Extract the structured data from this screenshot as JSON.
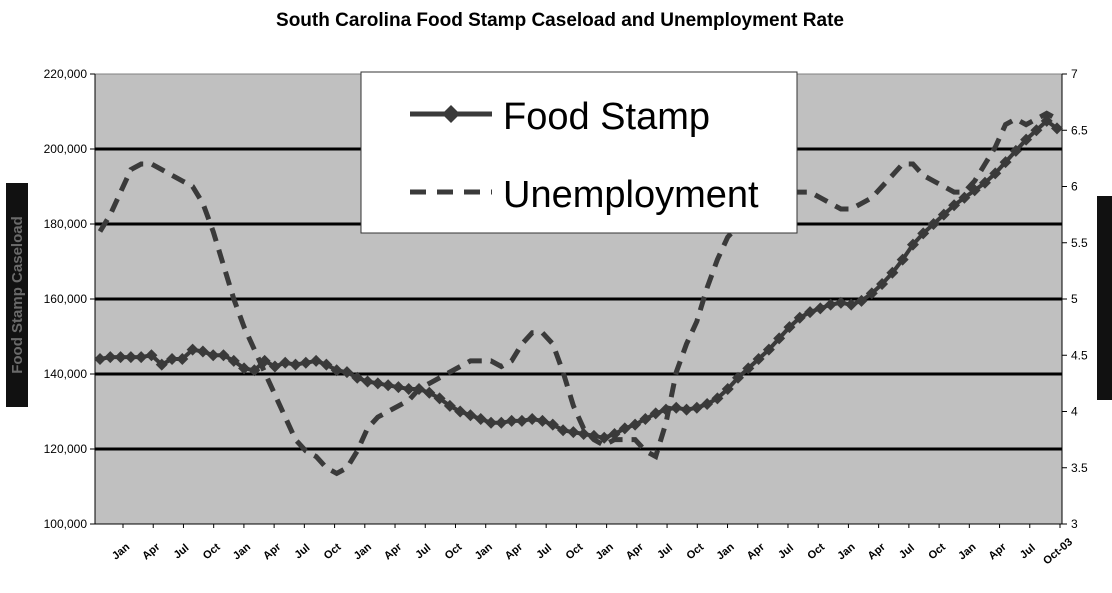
{
  "chart_data": {
    "type": "line",
    "title": "South Carolina Food Stamp Caseload and Unemployment Rate",
    "ylabel": "Food Stamp Caseload",
    "y2label": "",
    "ylim": [
      100000,
      220000
    ],
    "y2lim": [
      3,
      7
    ],
    "yticks": [
      "100,000",
      "120,000",
      "140,000",
      "160,000",
      "180,000",
      "200,000",
      "220,000"
    ],
    "y2ticks": [
      "3",
      "3.5",
      "4",
      "4.5",
      "5",
      "5.5",
      "6",
      "6.5",
      "7"
    ],
    "grid": "horizontal",
    "plot_background": "#c0c0c0",
    "line_color": "#3a3a3a",
    "legend_position": "top-center",
    "x_tick_labels": [
      "Jan",
      "Apr",
      "Jul",
      "Oct",
      "Jan",
      "Apr",
      "Jul",
      "Oct",
      "Jan",
      "Apr",
      "Jul",
      "Oct",
      "Jan",
      "Apr",
      "Jul",
      "Oct",
      "Jan",
      "Apr",
      "Jul",
      "Oct",
      "Jan",
      "Apr",
      "Jul",
      "Oct",
      "Jan",
      "Apr",
      "Jul",
      "Oct",
      "Jan",
      "Apr",
      "Jul",
      "Oct-03"
    ],
    "series": [
      {
        "name": "Food Stamp",
        "axis": "left",
        "style": "solid-diamond",
        "values": [
          144000,
          144500,
          144500,
          144500,
          144500,
          145000,
          142500,
          144000,
          144000,
          146500,
          146000,
          145000,
          145000,
          143500,
          141500,
          141000,
          143500,
          142000,
          143000,
          142500,
          143000,
          143500,
          142500,
          141000,
          140500,
          139000,
          138000,
          137500,
          137000,
          136500,
          136000,
          136000,
          135000,
          133500,
          131500,
          130000,
          129000,
          128000,
          127000,
          127000,
          127500,
          127500,
          128000,
          127500,
          126500,
          125000,
          124500,
          124000,
          123500,
          123000,
          124000,
          125500,
          126500,
          128000,
          129500,
          130500,
          131000,
          130500,
          131000,
          132000,
          133500,
          136000,
          139000,
          141500,
          144000,
          146500,
          149500,
          152500,
          155000,
          156500,
          157500,
          158500,
          159000,
          158500,
          159500,
          161500,
          164000,
          167000,
          170500,
          174500,
          177500,
          180000,
          182500,
          185000,
          187000,
          189000,
          191000,
          193500,
          196500,
          199500,
          202500,
          205000,
          207500,
          205500
        ]
      },
      {
        "name": "Unemployment",
        "axis": "right",
        "style": "dashed",
        "values": [
          5.6,
          5.75,
          5.95,
          6.15,
          6.2,
          6.2,
          6.15,
          6.1,
          6.05,
          6.0,
          5.85,
          5.6,
          5.3,
          5.0,
          4.75,
          4.55,
          4.35,
          4.15,
          3.95,
          3.75,
          3.65,
          3.6,
          3.5,
          3.45,
          3.5,
          3.65,
          3.85,
          3.95,
          4.0,
          4.05,
          4.1,
          4.2,
          4.25,
          4.3,
          4.35,
          4.4,
          4.45,
          4.45,
          4.45,
          4.4,
          4.45,
          4.6,
          4.7,
          4.7,
          4.6,
          4.35,
          4.05,
          3.85,
          3.75,
          3.7,
          3.75,
          3.75,
          3.75,
          3.65,
          3.6,
          3.9,
          4.35,
          4.6,
          4.8,
          5.1,
          5.35,
          5.55,
          5.65,
          5.75,
          5.85,
          5.9,
          5.9,
          5.95,
          5.95,
          5.95,
          5.9,
          5.85,
          5.8,
          5.8,
          5.85,
          5.9,
          6.0,
          6.1,
          6.2,
          6.2,
          6.1,
          6.05,
          6.0,
          5.95,
          5.95,
          6.05,
          6.2,
          6.35,
          6.55,
          6.6,
          6.55,
          6.6,
          6.65,
          6.6
        ]
      }
    ]
  }
}
